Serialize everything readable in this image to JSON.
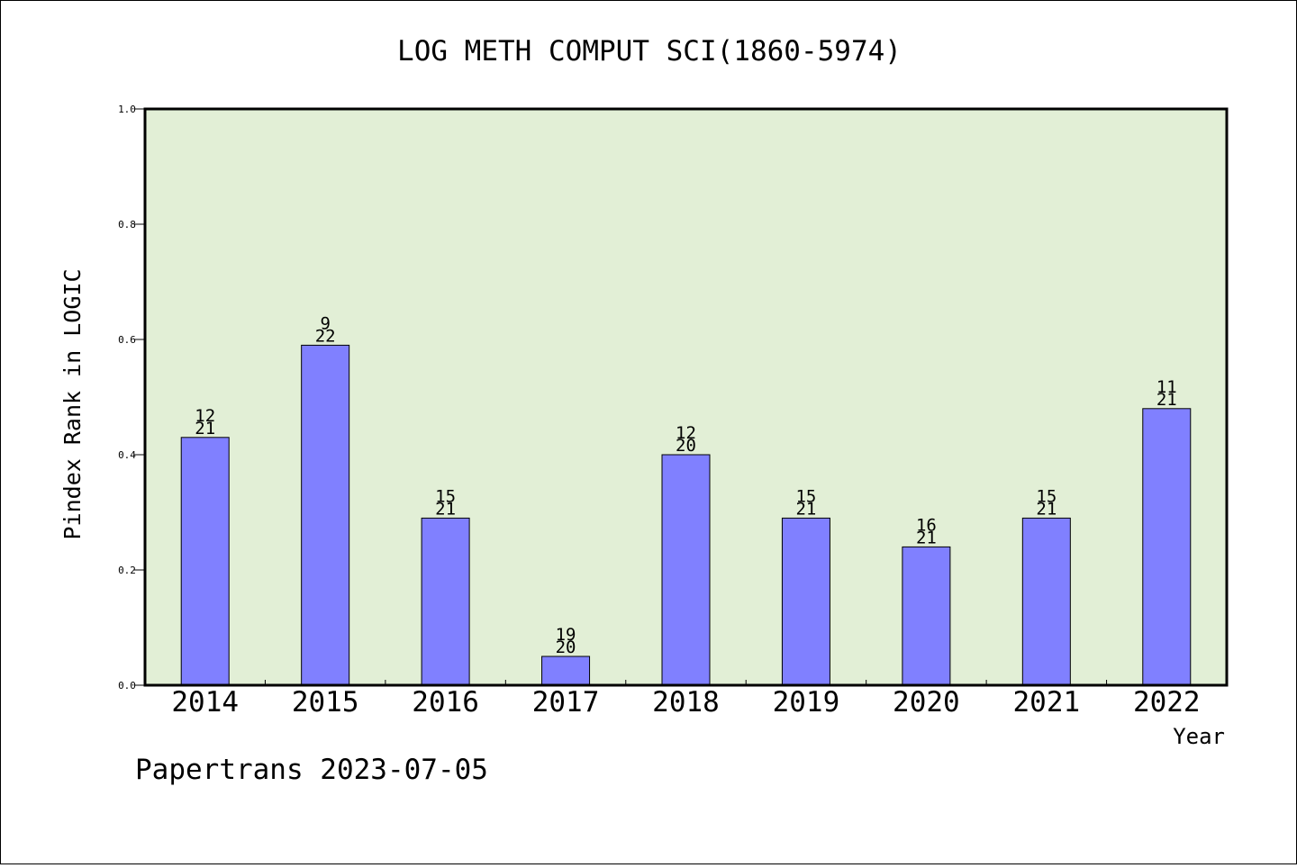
{
  "chart_data": {
    "type": "bar",
    "title": "LOG METH COMPUT SCI(1860-5974)",
    "xlabel": "Year",
    "ylabel": "Pindex Rank in LOGIC",
    "categories": [
      "2014",
      "2015",
      "2016",
      "2017",
      "2018",
      "2019",
      "2020",
      "2021",
      "2022"
    ],
    "values": [
      0.43,
      0.59,
      0.29,
      0.05,
      0.4,
      0.29,
      0.24,
      0.29,
      0.48
    ],
    "bar_labels_top": [
      "12",
      "9",
      "15",
      "19",
      "12",
      "15",
      "16",
      "15",
      "11"
    ],
    "bar_labels_bottom": [
      "21",
      "22",
      "21",
      "20",
      "20",
      "21",
      "21",
      "21",
      "21"
    ],
    "ylim": [
      0,
      1.0
    ],
    "yticks": [
      "0.0",
      "0.2",
      "0.4",
      "0.6",
      "0.8",
      "1.0"
    ],
    "grid": false,
    "colors": {
      "plot_background": "#e2efd6",
      "bar_fill": "#8080ff",
      "bar_stroke": "#000000"
    }
  },
  "footer": {
    "text": "Papertrans 2023-07-05"
  }
}
